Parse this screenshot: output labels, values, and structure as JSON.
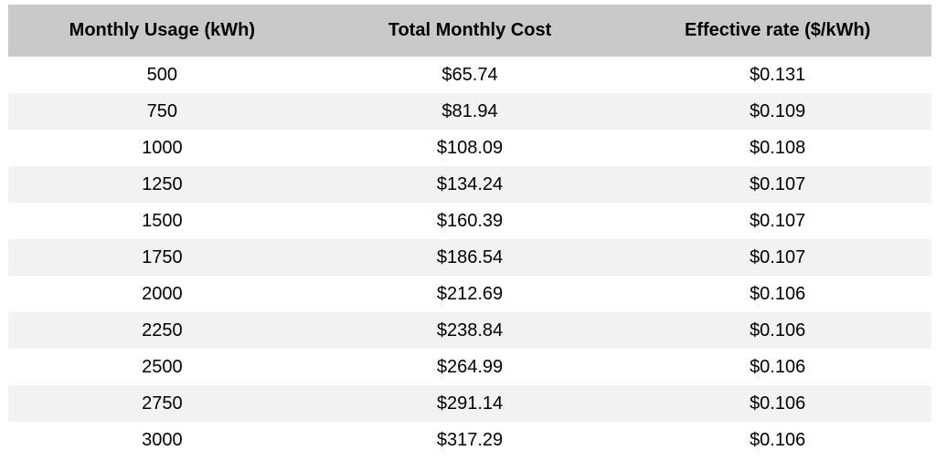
{
  "chart_data": {
    "type": "table",
    "title": "",
    "columns": [
      "Monthly Usage (kWh)",
      "Total Monthly Cost",
      "Effective rate ($/kWh)"
    ],
    "rows": [
      [
        "500",
        "$65.74",
        "$0.131"
      ],
      [
        "750",
        "$81.94",
        "$0.109"
      ],
      [
        "1000",
        "$108.09",
        "$0.108"
      ],
      [
        "1250",
        "$134.24",
        "$0.107"
      ],
      [
        "1500",
        "$160.39",
        "$0.107"
      ],
      [
        "1750",
        "$186.54",
        "$0.107"
      ],
      [
        "2000",
        "$212.69",
        "$0.106"
      ],
      [
        "2250",
        "$238.84",
        "$0.106"
      ],
      [
        "2500",
        "$264.99",
        "$0.106"
      ],
      [
        "2750",
        "$291.14",
        "$0.106"
      ],
      [
        "3000",
        "$317.29",
        "$0.106"
      ]
    ]
  },
  "colors": {
    "header_bg": "#c9c9c9",
    "row_alt_bg": "#f2f2f2",
    "row_bg": "#ffffff",
    "text_color": "#000000"
  }
}
